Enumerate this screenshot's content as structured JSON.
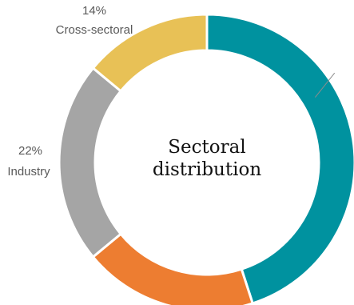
{
  "chart_data": {
    "type": "pie",
    "variant": "donut",
    "title": "Sectoral distribution",
    "start_angle_deg": 0,
    "direction": "clockwise",
    "slices": [
      {
        "name": "",
        "value": 45,
        "color": "#00929F",
        "label": ""
      },
      {
        "name": "",
        "value": 19,
        "color": "#ED7D31",
        "label": ""
      },
      {
        "name": "Industry",
        "value": 22,
        "color": "#A5A5A5",
        "label": "22%"
      },
      {
        "name": "Cross-sectoral",
        "value": 14,
        "color": "#E8C156",
        "label": "14%"
      }
    ],
    "legend": "none"
  }
}
